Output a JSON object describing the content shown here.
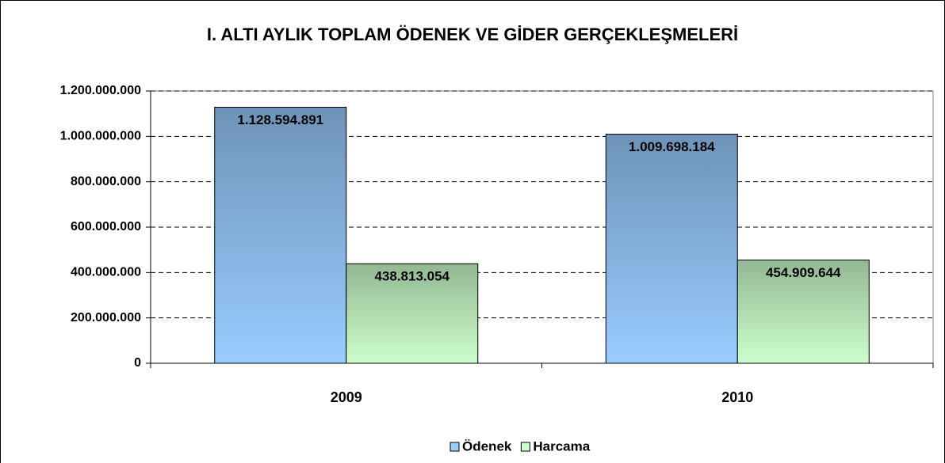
{
  "chart_data": {
    "type": "bar",
    "title": "I. ALTI AYLIK TOPLAM ÖDENEK VE GİDER GERÇEKLEŞMELERİ",
    "categories": [
      "2009",
      "2010"
    ],
    "series": [
      {
        "name": "Ödenek",
        "color": "#99ccff",
        "values": [
          1128594891,
          1009698184
        ],
        "value_labels": [
          "1.128.594.891",
          "1.009.698.184"
        ]
      },
      {
        "name": "Harcama",
        "color": "#ccffcc",
        "values": [
          438813054,
          454909644
        ],
        "value_labels": [
          "438.813.054",
          "454.909.644"
        ]
      }
    ],
    "ylim": [
      0,
      1200000000
    ],
    "yticks": [
      0,
      {
        "value": 200000000,
        "label": "200.000.000"
      },
      {
        "value": 400000000,
        "label": "400.000.000"
      },
      {
        "value": 600000000,
        "label": "600.000.000"
      },
      {
        "value": 800000000,
        "label": "800.000.000"
      },
      {
        "value": 1000000000,
        "label": "1.000.000.000"
      },
      {
        "value": 1200000000,
        "label": "1.200.000.000"
      }
    ],
    "grid": true,
    "legend": "bottom"
  }
}
